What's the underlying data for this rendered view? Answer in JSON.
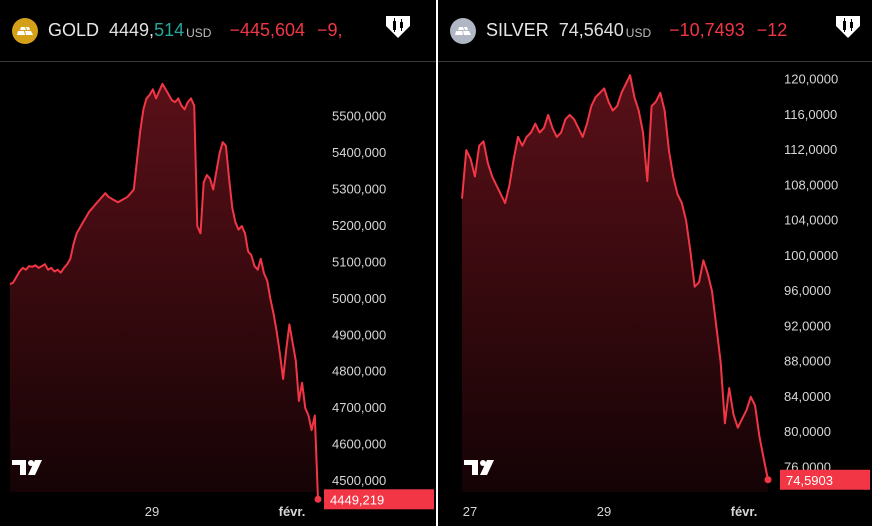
{
  "panels": [
    {
      "symbol": "GOLD",
      "price_int": "4449,",
      "price_frac": "514",
      "currency": "USD",
      "change": "−445,604",
      "change_pct": "−9,",
      "coin_color": "#d4a017",
      "line_color": "#f23645",
      "positive_color": "#26a69a"
    },
    {
      "symbol": "SILVER",
      "price_int": "74,5640",
      "price_frac": "",
      "currency": "USD",
      "change": "−10,7493",
      "change_pct": "−12",
      "coin_color": "#b0b6c3",
      "line_color": "#f23645",
      "positive_color": "#26a69a"
    }
  ],
  "chart_data": [
    {
      "type": "area",
      "title": "",
      "series": [
        {
          "values": [
            5040,
            5045,
            5060,
            5075,
            5085,
            5080,
            5090,
            5088,
            5092,
            5085,
            5090,
            5095,
            5080,
            5085,
            5075,
            5080,
            5072,
            5085,
            5095,
            5110,
            5150,
            5180,
            5195,
            5210,
            5225,
            5240,
            5250,
            5260,
            5270,
            5280,
            5290,
            5280,
            5275,
            5270,
            5265,
            5270,
            5275,
            5280,
            5290,
            5300,
            5380,
            5460,
            5520,
            5550,
            5560,
            5575,
            5550,
            5570,
            5590,
            5575,
            5560,
            5545,
            5540,
            5550,
            5530,
            5520,
            5540,
            5550,
            5530,
            5200,
            5180,
            5320,
            5340,
            5330,
            5300,
            5350,
            5400,
            5430,
            5420,
            5330,
            5250,
            5210,
            5190,
            5200,
            5180,
            5130,
            5120,
            5090,
            5080,
            5110,
            5070,
            5050,
            5000,
            4960,
            4910,
            4850,
            4780,
            4860,
            4930,
            4880,
            4830,
            4720,
            4770,
            4700,
            4680,
            4640,
            4680,
            4450
          ],
          "last_value": "4449,219"
        }
      ],
      "ylim": [
        4470,
        5650
      ],
      "yticks": [
        "4500,000",
        "4600,000",
        "4700,000",
        "4800,000",
        "4900,000",
        "5000,000",
        "5100,000",
        "5200,000",
        "5300,000",
        "5400,000",
        "5500,000"
      ],
      "xticks": [
        "29",
        "févr."
      ],
      "logo": "TV",
      "grid": false
    },
    {
      "type": "area",
      "title": "",
      "series": [
        {
          "values": [
            106.5,
            112.0,
            111.0,
            109.0,
            112.5,
            113.0,
            110.5,
            109.0,
            108.0,
            107.0,
            106.0,
            108.0,
            111.0,
            113.5,
            112.5,
            113.5,
            114.0,
            115.0,
            114.0,
            114.5,
            116.0,
            114.5,
            113.5,
            114.0,
            115.5,
            116.0,
            115.5,
            114.5,
            113.5,
            115.0,
            117.0,
            118.0,
            118.5,
            119.0,
            117.5,
            116.5,
            117.0,
            118.5,
            119.5,
            120.5,
            118.0,
            116.5,
            114.0,
            108.5,
            117.0,
            117.5,
            118.5,
            116.5,
            112.0,
            109.0,
            107.0,
            106.0,
            104.0,
            100.5,
            96.5,
            97.0,
            99.5,
            98.0,
            96.0,
            92.0,
            88.0,
            81.0,
            85.0,
            82.0,
            80.5,
            81.5,
            82.5,
            84.0,
            83.0,
            79.5,
            77.0,
            74.59
          ],
          "last_value": "74,5903"
        }
      ],
      "ylim": [
        73.2,
        122.0
      ],
      "yticks": [
        "76,0000",
        "80,0000",
        "84,0000",
        "88,0000",
        "92,0000",
        "96,0000",
        "100,0000",
        "104,0000",
        "108,0000",
        "112,0000",
        "116,0000",
        "120,0000"
      ],
      "xticks": [
        "27",
        "29",
        "févr."
      ],
      "logo": "TV",
      "grid": false
    }
  ]
}
